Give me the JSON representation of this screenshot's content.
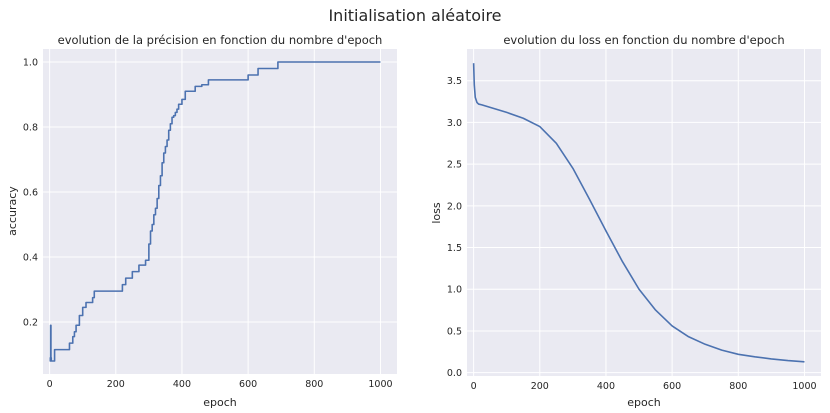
{
  "figure": {
    "title": "Initialisation aléatoire"
  },
  "chart_data": [
    {
      "type": "line",
      "title": "evolution de la précision en fonction du nombre d'epoch",
      "xlabel": "epoch",
      "ylabel": "accuracy",
      "xlim": [
        -20,
        1050
      ],
      "ylim": [
        0.04,
        1.04
      ],
      "xticks": [
        0,
        200,
        400,
        600,
        800,
        1000
      ],
      "yticks": [
        0.2,
        0.4,
        0.6,
        0.8,
        1.0
      ],
      "xtick_labels": [
        "0",
        "200",
        "400",
        "600",
        "800",
        "1000"
      ],
      "ytick_labels": [
        "0.2",
        "0.4",
        "0.6",
        "0.8",
        "1.0"
      ],
      "grid": true,
      "step": true,
      "color": "#4c72b0",
      "series": [
        {
          "x": [
            0,
            2,
            3,
            4,
            5,
            8,
            10,
            15,
            30,
            60,
            70,
            75,
            80,
            90,
            100,
            110,
            130,
            135,
            160,
            220,
            230,
            250,
            270,
            290,
            300,
            305,
            310,
            315,
            320,
            325,
            330,
            335,
            340,
            345,
            350,
            355,
            360,
            365,
            370,
            375,
            380,
            385,
            390,
            400,
            410,
            420,
            440,
            460,
            480,
            510,
            520,
            540,
            560,
            580,
            600,
            630,
            640,
            650,
            690,
            700,
            1000
          ],
          "y": [
            0.09,
            0.08,
            0.19,
            0.09,
            0.08,
            0.08,
            0.08,
            0.115,
            0.115,
            0.135,
            0.155,
            0.17,
            0.19,
            0.22,
            0.245,
            0.26,
            0.275,
            0.295,
            0.295,
            0.315,
            0.335,
            0.355,
            0.375,
            0.39,
            0.44,
            0.48,
            0.5,
            0.53,
            0.55,
            0.58,
            0.62,
            0.65,
            0.69,
            0.72,
            0.74,
            0.76,
            0.79,
            0.81,
            0.83,
            0.835,
            0.845,
            0.855,
            0.87,
            0.885,
            0.91,
            0.91,
            0.925,
            0.93,
            0.945,
            0.945,
            0.945,
            0.945,
            0.945,
            0.945,
            0.96,
            0.98,
            0.98,
            0.98,
            1.0,
            1.0,
            1.0
          ]
        }
      ]
    },
    {
      "type": "line",
      "title": "evolution du loss en fonction du nombre d'epoch",
      "xlabel": "epoch",
      "ylabel": "loss",
      "xlim": [
        -20,
        1050
      ],
      "ylim": [
        -0.04,
        3.88
      ],
      "xticks": [
        0,
        200,
        400,
        600,
        800,
        1000
      ],
      "yticks": [
        0.0,
        0.5,
        1.0,
        1.5,
        2.0,
        2.5,
        3.0,
        3.5
      ],
      "xtick_labels": [
        "0",
        "200",
        "400",
        "600",
        "800",
        "1000"
      ],
      "ytick_labels": [
        "0.0",
        "0.5",
        "1.0",
        "1.5",
        "2.0",
        "2.5",
        "3.0",
        "3.5"
      ],
      "grid": true,
      "step": false,
      "color": "#4c72b0",
      "series": [
        {
          "x": [
            0,
            2,
            5,
            10,
            15,
            25,
            50,
            100,
            150,
            200,
            250,
            300,
            350,
            400,
            450,
            500,
            550,
            600,
            650,
            700,
            750,
            800,
            850,
            900,
            950,
            1000
          ],
          "y": [
            3.71,
            3.45,
            3.3,
            3.24,
            3.22,
            3.21,
            3.18,
            3.12,
            3.05,
            2.95,
            2.75,
            2.45,
            2.08,
            1.7,
            1.33,
            1.0,
            0.75,
            0.56,
            0.43,
            0.34,
            0.27,
            0.22,
            0.19,
            0.165,
            0.145,
            0.13
          ]
        }
      ]
    }
  ]
}
